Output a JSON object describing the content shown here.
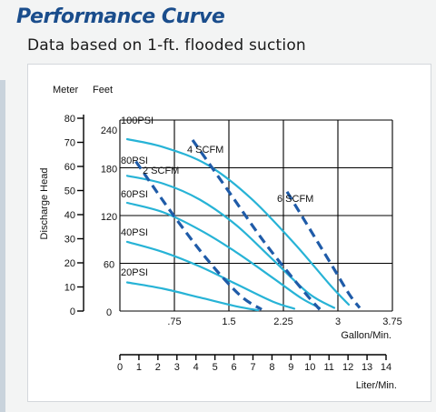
{
  "header": {
    "title": "Performance Curve",
    "subtitle": "Data based on 1-ft. flooded suction"
  },
  "chart_data": {
    "type": "line",
    "ylabel": "Discharge Head",
    "y_units": [
      "Meter",
      "Feet"
    ],
    "meter_ticks": [
      "80",
      "70",
      "60",
      "50",
      "40",
      "30",
      "20",
      "10",
      "0"
    ],
    "feet_ticks": [
      "240",
      "180",
      "120",
      "60",
      "0"
    ],
    "xlabel": "Gallon/Min.",
    "x_ticks": [
      "0",
      ".75",
      "1.5",
      "2.25",
      "3",
      "3.75"
    ],
    "xlabel2": "Liter/Min.",
    "liter_ticks": [
      "0",
      "1",
      "2",
      "3",
      "4",
      "5",
      "6",
      "7",
      "8",
      "9",
      "10",
      "11",
      "12",
      "13",
      "14"
    ],
    "xlim": [
      0,
      3.75
    ],
    "ylim": [
      0,
      240
    ],
    "grid": true,
    "pressure_series": [
      {
        "name": "100PSI",
        "x": [
          0.1,
          0.6,
          1.2,
          1.8,
          2.4,
          2.9,
          3.15
        ],
        "y": [
          216,
          206,
          184,
          142,
          85,
          32,
          8
        ]
      },
      {
        "name": "80PSI",
        "x": [
          0.1,
          0.6,
          1.1,
          1.6,
          2.1,
          2.6,
          2.95
        ],
        "y": [
          170,
          160,
          140,
          108,
          65,
          22,
          4
        ]
      },
      {
        "name": "60PSI",
        "x": [
          0.1,
          0.6,
          1.1,
          1.6,
          2.1,
          2.5,
          2.75
        ],
        "y": [
          136,
          124,
          102,
          74,
          42,
          16,
          4
        ]
      },
      {
        "name": "40PSI",
        "x": [
          0.1,
          0.6,
          1.1,
          1.6,
          2.1,
          2.4
        ],
        "y": [
          87,
          74,
          56,
          34,
          12,
          3
        ]
      },
      {
        "name": "20PSI",
        "x": [
          0.1,
          0.6,
          1.1,
          1.6,
          1.9
        ],
        "y": [
          36,
          28,
          17,
          6,
          1
        ]
      }
    ],
    "air_series": [
      {
        "name": "2 SCFM",
        "x": [
          0.22,
          0.7,
          1.2,
          1.65,
          1.95
        ],
        "y": [
          188,
          125,
          65,
          20,
          2
        ]
      },
      {
        "name": "4 SCFM",
        "x": [
          1.0,
          1.5,
          2.0,
          2.5,
          2.75
        ],
        "y": [
          215,
          150,
          85,
          28,
          2
        ]
      },
      {
        "name": "6 SCFM",
        "x": [
          2.3,
          2.6,
          2.9,
          3.15,
          3.3
        ],
        "y": [
          150,
          105,
          60,
          22,
          4
        ]
      }
    ]
  }
}
